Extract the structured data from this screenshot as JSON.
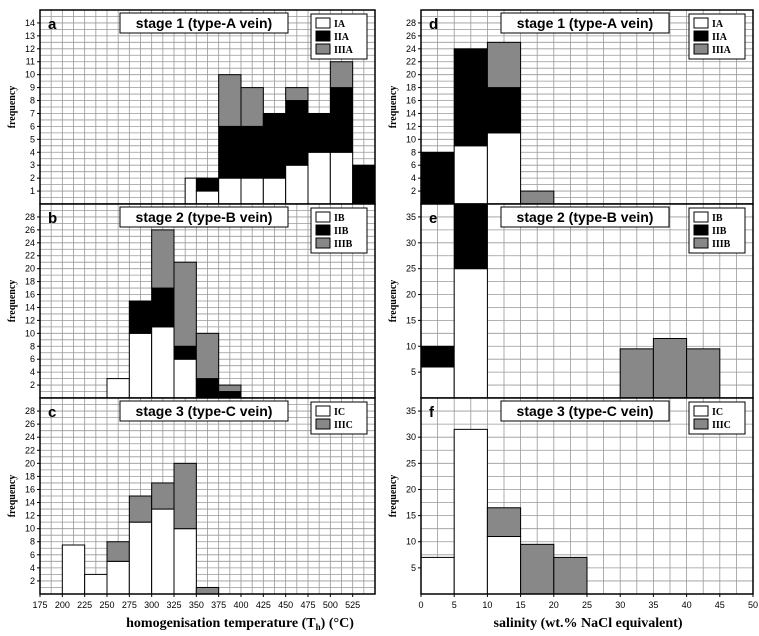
{
  "colors": {
    "I": "#ffffff",
    "II": "#000000",
    "III": "#888888",
    "grid": "#999999"
  },
  "xlabels": {
    "left": "homogenisation temperature (T",
    "left_sub": "h",
    "left_tail": ") (°C)",
    "right": "salinity (wt.% NaCl equivalent)"
  },
  "chart_data": [
    {
      "id": "a",
      "type": "bar",
      "stacked": true,
      "letter": "a",
      "title": "stage 1 (type-A vein)",
      "ylabel": "frequency",
      "xlim": [
        175,
        550
      ],
      "ylim": [
        0,
        15
      ],
      "bin_width": 25,
      "yticks": [
        1,
        2,
        3,
        4,
        5,
        6,
        7,
        8,
        9,
        10,
        11,
        12,
        13,
        14
      ],
      "xticks": [],
      "legend": [
        {
          "key": "I",
          "label": "IA"
        },
        {
          "key": "II",
          "label": "IIA"
        },
        {
          "key": "III",
          "label": "IIIA"
        }
      ],
      "bins": [
        {
          "x": 350,
          "I": 2,
          "II": 0,
          "III": 0
        },
        {
          "x": 362.5,
          "I": 1,
          "II": 1,
          "III": 0
        },
        {
          "x": 387.5,
          "I": 2,
          "II": 4,
          "III": 4
        },
        {
          "x": 412.5,
          "I": 2,
          "II": 4,
          "III": 3
        },
        {
          "x": 437.5,
          "I": 2,
          "II": 5,
          "III": 0
        },
        {
          "x": 462.5,
          "I": 3,
          "II": 5,
          "III": 1
        },
        {
          "x": 487.5,
          "I": 4,
          "II": 3,
          "III": 0
        },
        {
          "x": 512.5,
          "I": 4,
          "II": 5,
          "III": 2
        },
        {
          "x": 537.5,
          "I": 0,
          "II": 3,
          "III": 0
        }
      ]
    },
    {
      "id": "b",
      "type": "bar",
      "stacked": true,
      "letter": "b",
      "title": "stage 2 (type-B vein)",
      "ylabel": "frequency",
      "xlim": [
        175,
        550
      ],
      "ylim": [
        0,
        30
      ],
      "bin_width": 25,
      "yticks": [
        2,
        4,
        6,
        8,
        10,
        12,
        14,
        16,
        18,
        20,
        22,
        24,
        26,
        28
      ],
      "xticks": [],
      "legend": [
        {
          "key": "I",
          "label": "IB"
        },
        {
          "key": "II",
          "label": "IIB"
        },
        {
          "key": "III",
          "label": "IIIB"
        }
      ],
      "bins": [
        {
          "x": 262.5,
          "I": 3,
          "II": 0,
          "III": 0
        },
        {
          "x": 287.5,
          "I": 10,
          "II": 5,
          "III": 0
        },
        {
          "x": 312.5,
          "I": 11,
          "II": 6,
          "III": 9
        },
        {
          "x": 337.5,
          "I": 6,
          "II": 2,
          "III": 13
        },
        {
          "x": 362.5,
          "I": 0,
          "II": 3,
          "III": 7
        },
        {
          "x": 387.5,
          "I": 0,
          "II": 1,
          "III": 1
        }
      ]
    },
    {
      "id": "c",
      "type": "bar",
      "stacked": true,
      "letter": "c",
      "title": "stage 3 (type-C vein)",
      "ylabel": "frequency",
      "xlim": [
        175,
        550
      ],
      "ylim": [
        0,
        30
      ],
      "bin_width": 25,
      "yticks": [
        2,
        4,
        6,
        8,
        10,
        12,
        14,
        16,
        18,
        20,
        22,
        24,
        26,
        28
      ],
      "xticks": [
        175,
        200,
        225,
        250,
        275,
        300,
        325,
        350,
        375,
        400,
        425,
        450,
        475,
        500,
        525
      ],
      "legend": [
        {
          "key": "I",
          "label": "IC"
        },
        {
          "key": "III",
          "label": "IIIC"
        }
      ],
      "bins": [
        {
          "x": 212.5,
          "I": 7.5,
          "II": 0,
          "III": 0
        },
        {
          "x": 237.5,
          "I": 3,
          "II": 0,
          "III": 0
        },
        {
          "x": 262.5,
          "I": 5,
          "II": 0,
          "III": 3
        },
        {
          "x": 287.5,
          "I": 11,
          "II": 0,
          "III": 4
        },
        {
          "x": 312.5,
          "I": 13,
          "II": 0,
          "III": 4
        },
        {
          "x": 337.5,
          "I": 10,
          "II": 0,
          "III": 10
        },
        {
          "x": 362.5,
          "I": 0,
          "II": 0,
          "III": 1
        }
      ]
    },
    {
      "id": "d",
      "type": "bar",
      "stacked": true,
      "letter": "d",
      "title": "stage 1 (type-A vein)",
      "ylabel": "frequency",
      "xlim": [
        0,
        50
      ],
      "ylim": [
        0,
        30
      ],
      "bin_width": 5,
      "yticks": [
        2,
        4,
        6,
        8,
        10,
        12,
        14,
        16,
        18,
        20,
        22,
        24,
        26,
        28
      ],
      "xticks": [],
      "legend": [
        {
          "key": "I",
          "label": "IA"
        },
        {
          "key": "II",
          "label": "IIA"
        },
        {
          "key": "III",
          "label": "IIIA"
        }
      ],
      "bins": [
        {
          "x": 2.5,
          "I": 0,
          "II": 8,
          "III": 0
        },
        {
          "x": 7.5,
          "I": 9,
          "II": 15,
          "III": 0
        },
        {
          "x": 12.5,
          "I": 11,
          "II": 7,
          "III": 7
        },
        {
          "x": 17.5,
          "I": 0,
          "II": 0,
          "III": 2
        }
      ]
    },
    {
      "id": "e",
      "type": "bar",
      "stacked": true,
      "letter": "e",
      "title": "stage 2 (type-B vein)",
      "ylabel": "frequency",
      "xlim": [
        0,
        50
      ],
      "ylim": [
        0,
        37.5
      ],
      "bin_width": 5,
      "yticks": [
        5,
        10,
        15,
        20,
        25,
        30,
        35
      ],
      "xticks": [],
      "legend": [
        {
          "key": "I",
          "label": "IB"
        },
        {
          "key": "II",
          "label": "IIB"
        },
        {
          "key": "III",
          "label": "IIIB"
        }
      ],
      "bins": [
        {
          "x": 2.5,
          "I": 6,
          "II": 4,
          "III": 0
        },
        {
          "x": 7.5,
          "I": 25,
          "II": 12.5,
          "III": 0
        },
        {
          "x": 32.5,
          "I": 0,
          "II": 0,
          "III": 9.5
        },
        {
          "x": 37.5,
          "I": 0,
          "II": 0,
          "III": 11.5
        },
        {
          "x": 42.5,
          "I": 0,
          "II": 0,
          "III": 9.5
        }
      ]
    },
    {
      "id": "f",
      "type": "bar",
      "stacked": true,
      "letter": "f",
      "title": "stage 3 (type-C vein)",
      "ylabel": "frequency",
      "xlim": [
        0,
        50
      ],
      "ylim": [
        0,
        37.5
      ],
      "bin_width": 5,
      "yticks": [
        5,
        10,
        15,
        20,
        25,
        30,
        35
      ],
      "xticks": [
        0,
        5,
        10,
        15,
        20,
        25,
        30,
        35,
        40,
        45,
        50
      ],
      "legend": [
        {
          "key": "I",
          "label": "IC"
        },
        {
          "key": "III",
          "label": "IIIC"
        }
      ],
      "bins": [
        {
          "x": 2.5,
          "I": 7,
          "II": 0,
          "III": 0
        },
        {
          "x": 7.5,
          "I": 31.5,
          "II": 0,
          "III": 0
        },
        {
          "x": 12.5,
          "I": 11,
          "II": 0,
          "III": 5.5
        },
        {
          "x": 17.5,
          "I": 0,
          "II": 0,
          "III": 9.5
        },
        {
          "x": 22.5,
          "I": 0,
          "II": 0,
          "III": 7
        }
      ]
    }
  ]
}
